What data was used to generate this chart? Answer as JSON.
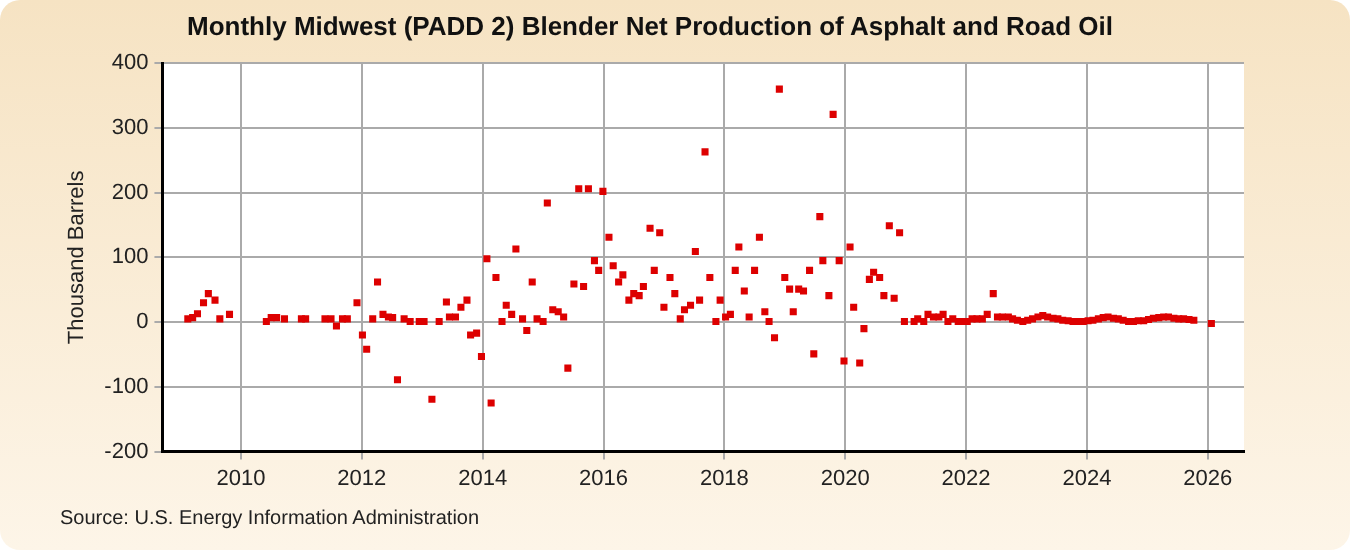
{
  "chart_data": {
    "type": "scatter",
    "title": "Monthly Midwest (PADD 2) Blender Net Production of Asphalt and Road Oil",
    "ylabel": "Thousand Barrels",
    "annotations": [
      "Source: U.S. Energy Information Administration"
    ],
    "series": [
      {
        "color": "#dd0000",
        "x": [
          2009.12,
          2009.2,
          2009.28,
          2009.38,
          2009.46,
          2009.57,
          2009.65,
          2009.81,
          2010.42,
          2010.5,
          2010.59,
          2010.72,
          2011.0,
          2011.07,
          2011.39,
          2011.49,
          2011.58,
          2011.68,
          2011.76,
          2011.92,
          2012.01,
          2012.08,
          2012.18,
          2012.26,
          2012.35,
          2012.44,
          2012.51,
          2012.59,
          2012.7,
          2012.8,
          2012.95,
          2013.03,
          2013.16,
          2013.28,
          2013.4,
          2013.45,
          2013.55,
          2013.64,
          2013.74,
          2013.8,
          2013.9,
          2013.98,
          2014.07,
          2014.14,
          2014.22,
          2014.32,
          2014.39,
          2014.48,
          2014.55,
          2014.66,
          2014.73,
          2014.82,
          2014.9,
          2015.0,
          2015.07,
          2015.16,
          2015.25,
          2015.34,
          2015.41,
          2015.51,
          2015.59,
          2015.67,
          2015.75,
          2015.85,
          2015.92,
          2015.99,
          2016.09,
          2016.16,
          2016.25,
          2016.32,
          2016.42,
          2016.5,
          2016.59,
          2016.66,
          2016.77,
          2016.84,
          2016.93,
          2017.0,
          2017.1,
          2017.18,
          2017.27,
          2017.34,
          2017.44,
          2017.52,
          2017.59,
          2017.68,
          2017.76,
          2017.86,
          2017.93,
          2018.02,
          2018.1,
          2018.18,
          2018.24,
          2018.33,
          2018.41,
          2018.5,
          2018.58,
          2018.67,
          2018.74,
          2018.83,
          2018.91,
          2019.0,
          2019.08,
          2019.14,
          2019.23,
          2019.31,
          2019.41,
          2019.48,
          2019.58,
          2019.63,
          2019.73,
          2019.8,
          2019.9,
          2019.98,
          2020.08,
          2020.14,
          2020.24,
          2020.31,
          2020.4,
          2020.47,
          2020.57,
          2020.64,
          2020.73,
          2020.81,
          2020.9,
          2020.98,
          2021.14,
          2021.2,
          2021.3,
          2021.37,
          2021.46,
          2021.55,
          2021.62,
          2021.7,
          2021.78,
          2021.87,
          2021.95,
          2022.02,
          2022.1,
          2022.18,
          2022.27,
          2022.35,
          2022.45,
          2022.52,
          2022.6,
          2022.7,
          2022.77,
          2022.85,
          2022.94,
          2023.02,
          2023.1,
          2023.19,
          2023.27,
          2023.35,
          2023.44,
          2023.52,
          2023.6,
          2023.69,
          2023.77,
          2023.85,
          2023.94,
          2024.02,
          2024.1,
          2024.19,
          2024.27,
          2024.35,
          2024.44,
          2024.52,
          2024.6,
          2024.69,
          2024.77,
          2024.85,
          2024.94,
          2025.02,
          2025.1,
          2025.19,
          2025.27,
          2025.35,
          2025.44,
          2025.52,
          2025.6,
          2025.69,
          2025.77,
          2026.06
        ],
        "values": [
          5,
          7,
          13,
          30,
          44,
          34,
          5,
          12,
          1,
          7,
          7,
          5,
          5,
          5,
          5,
          5,
          -6,
          5,
          5,
          30,
          -20,
          -42,
          5,
          62,
          12,
          8,
          7,
          -89,
          5,
          1,
          1,
          1,
          -119,
          1,
          31,
          8,
          8,
          23,
          34,
          -20,
          -17,
          -53,
          98,
          -125,
          69,
          1,
          26,
          12,
          113,
          5,
          -13,
          62,
          5,
          1,
          184,
          19,
          16,
          8,
          -71,
          59,
          206,
          55,
          206,
          95,
          80,
          202,
          131,
          87,
          62,
          73,
          34,
          44,
          41,
          55,
          145,
          80,
          138,
          23,
          69,
          44,
          5,
          19,
          26,
          109,
          34,
          263,
          69,
          1,
          34,
          8,
          12,
          80,
          116,
          48,
          8,
          80,
          131,
          16,
          1,
          -24,
          360,
          69,
          51,
          16,
          51,
          48,
          80,
          -49,
          163,
          95,
          41,
          321,
          95,
          -60,
          116,
          23,
          -63,
          -10,
          66,
          77,
          69,
          41,
          149,
          37,
          138,
          1,
          1,
          5,
          1,
          12,
          8,
          8,
          12,
          1,
          5,
          1,
          1,
          1,
          5,
          5,
          5,
          12,
          44,
          8,
          8,
          8,
          5,
          3,
          1,
          3,
          5,
          8,
          10,
          8,
          6,
          5,
          3,
          2,
          1,
          1,
          1,
          2,
          3,
          5,
          7,
          8,
          6,
          5,
          3,
          1,
          1,
          2,
          2,
          4,
          6,
          7,
          8,
          8,
          6,
          5,
          5,
          4,
          3,
          -2
        ]
      }
    ],
    "xlim": [
      2008.7,
      2026.6
    ],
    "xticks": [
      2010,
      2012,
      2014,
      2016,
      2018,
      2020,
      2022,
      2024,
      2026
    ],
    "ylim": [
      -200,
      400
    ],
    "yticks": [
      -200,
      -100,
      0,
      100,
      200,
      300,
      400
    ],
    "grid": true,
    "legend": false,
    "marker": "square"
  }
}
